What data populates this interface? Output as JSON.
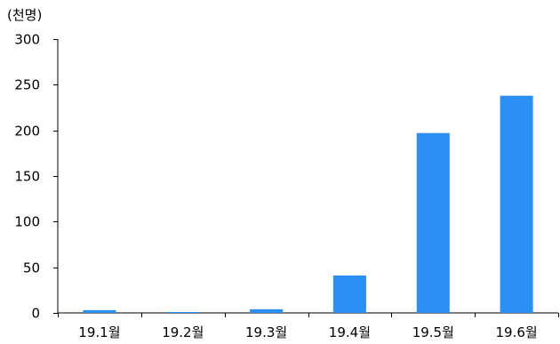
{
  "chart_data": {
    "type": "bar",
    "unit_label": "(천명)",
    "categories": [
      "19.1월",
      "19.2월",
      "19.3월",
      "19.4월",
      "19.5월",
      "19.6월"
    ],
    "values": [
      3,
      1,
      4,
      41,
      197,
      238
    ],
    "ylim": [
      0,
      300
    ],
    "yticks": [
      0,
      50,
      100,
      150,
      200,
      250,
      300
    ],
    "grid": false,
    "legend": "none",
    "bar_color": "#2b8ef5",
    "axis_color": "#000000"
  }
}
